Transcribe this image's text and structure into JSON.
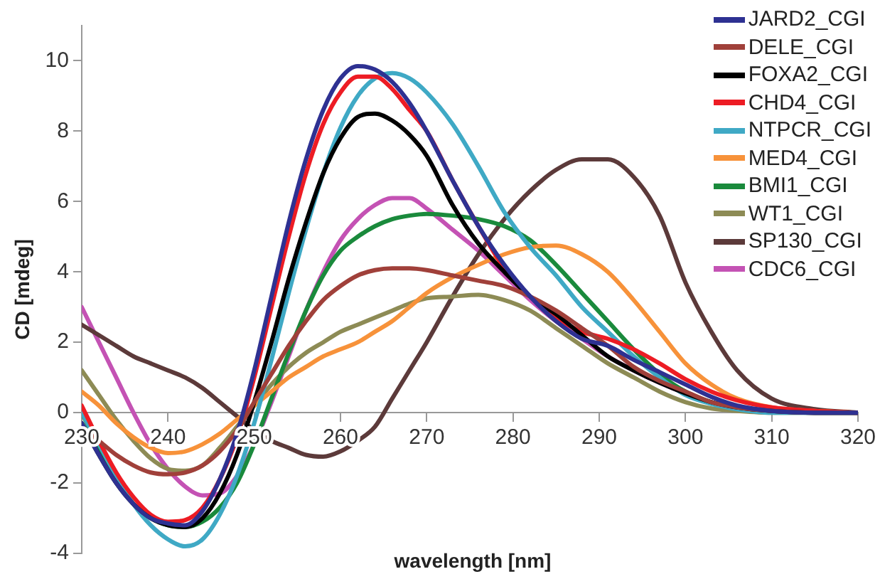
{
  "chart_data": {
    "type": "line",
    "xlabel": "wavelength [nm]",
    "ylabel": "CD [mdeg]",
    "xlim": [
      230,
      320
    ],
    "xticks": [
      230,
      240,
      250,
      260,
      270,
      280,
      290,
      300,
      310,
      320
    ],
    "ylim": [
      -4,
      11
    ],
    "yticks": [
      -4,
      -2,
      0,
      2,
      4,
      6,
      8,
      10
    ],
    "grid": false,
    "legend": "top right",
    "marker": "none",
    "line_style": "solid",
    "x": [
      230,
      232,
      234,
      236,
      238,
      240,
      242,
      244,
      246,
      248,
      250,
      252,
      254,
      256,
      258,
      260,
      262,
      264,
      266,
      268,
      270,
      273,
      276,
      279,
      282,
      285,
      288,
      291,
      294,
      297,
      300,
      303,
      306,
      310,
      315,
      320
    ],
    "series": [
      {
        "name": "JARD2_CGI",
        "color": "#2e3192",
        "values": [
          -0.3,
          -1.2,
          -2.0,
          -2.6,
          -3.0,
          -3.15,
          -3.2,
          -2.8,
          -1.9,
          -0.6,
          1.2,
          3.3,
          5.4,
          7.2,
          8.6,
          9.5,
          9.85,
          9.75,
          9.4,
          8.8,
          8.0,
          6.6,
          5.3,
          4.2,
          3.3,
          2.6,
          2.1,
          1.9,
          1.5,
          1.15,
          0.8,
          0.45,
          0.2,
          0.05,
          0,
          0
        ]
      },
      {
        "name": "DELE_CGI",
        "color": "#a0403a",
        "values": [
          -0.4,
          -0.8,
          -1.2,
          -1.5,
          -1.7,
          -1.75,
          -1.7,
          -1.5,
          -1.1,
          -0.5,
          0.3,
          1.1,
          1.9,
          2.6,
          3.2,
          3.6,
          3.9,
          4.05,
          4.1,
          4.1,
          4.05,
          3.9,
          3.75,
          3.6,
          3.3,
          2.9,
          2.4,
          1.9,
          1.3,
          0.9,
          0.6,
          0.3,
          0.15,
          0.05,
          0,
          0
        ]
      },
      {
        "name": "FOXA2_CGI",
        "color": "#000000",
        "values": [
          -0.3,
          -1.2,
          -2.0,
          -2.6,
          -3.0,
          -3.2,
          -3.25,
          -3.0,
          -2.3,
          -1.2,
          0.3,
          2.0,
          3.8,
          5.4,
          6.8,
          7.8,
          8.4,
          8.5,
          8.3,
          7.9,
          7.3,
          5.9,
          4.8,
          4.0,
          3.3,
          2.8,
          2.2,
          1.6,
          1.2,
          0.85,
          0.55,
          0.3,
          0.15,
          0.05,
          0,
          0
        ]
      },
      {
        "name": "CHD4_CGI",
        "color": "#ed1c24",
        "values": [
          0.2,
          -0.8,
          -1.7,
          -2.4,
          -2.9,
          -3.1,
          -3.05,
          -2.7,
          -1.9,
          -0.7,
          1.0,
          3.0,
          5.0,
          6.8,
          8.2,
          9.1,
          9.55,
          9.55,
          9.2,
          8.6,
          8.0,
          6.6,
          5.3,
          4.1,
          3.3,
          2.7,
          2.3,
          2.1,
          1.8,
          1.4,
          0.95,
          0.6,
          0.35,
          0.15,
          0.05,
          0
        ]
      },
      {
        "name": "NTPCR_CGI",
        "color": "#3fa9c5",
        "values": [
          0.0,
          -0.9,
          -1.8,
          -2.6,
          -3.2,
          -3.6,
          -3.8,
          -3.6,
          -2.9,
          -1.8,
          -0.3,
          1.5,
          3.4,
          5.2,
          6.8,
          8.1,
          9.0,
          9.5,
          9.65,
          9.5,
          9.1,
          8.2,
          7.0,
          5.7,
          4.7,
          3.9,
          3.0,
          2.3,
          1.6,
          1.0,
          0.5,
          0.25,
          0.1,
          0,
          0,
          0
        ]
      },
      {
        "name": "MED4_CGI",
        "color": "#f7923a",
        "values": [
          0.6,
          0.2,
          -0.3,
          -0.7,
          -1.0,
          -1.15,
          -1.1,
          -0.9,
          -0.6,
          -0.2,
          0.2,
          0.6,
          1.0,
          1.3,
          1.6,
          1.8,
          2.0,
          2.3,
          2.6,
          3.0,
          3.4,
          3.85,
          4.2,
          4.5,
          4.7,
          4.75,
          4.5,
          4.0,
          3.2,
          2.3,
          1.4,
          0.8,
          0.4,
          0.15,
          0.05,
          0
        ]
      },
      {
        "name": "BMI1_CGI",
        "color": "#1a8a3c",
        "values": [
          0.0,
          -1.0,
          -1.9,
          -2.6,
          -3.0,
          -3.2,
          -3.25,
          -3.1,
          -2.7,
          -2.0,
          -0.9,
          0.4,
          1.7,
          2.9,
          3.9,
          4.6,
          5.0,
          5.3,
          5.5,
          5.6,
          5.65,
          5.6,
          5.5,
          5.3,
          4.9,
          4.2,
          3.4,
          2.6,
          1.8,
          1.1,
          0.6,
          0.3,
          0.15,
          0.05,
          0,
          0
        ]
      },
      {
        "name": "WT1_CGI",
        "color": "#8d8b55",
        "values": [
          1.2,
          0.5,
          -0.2,
          -0.8,
          -1.3,
          -1.6,
          -1.65,
          -1.5,
          -1.0,
          -0.4,
          0.2,
          0.8,
          1.3,
          1.7,
          2.0,
          2.3,
          2.5,
          2.7,
          2.9,
          3.1,
          3.25,
          3.3,
          3.35,
          3.2,
          2.9,
          2.4,
          1.9,
          1.4,
          1.0,
          0.6,
          0.3,
          0.12,
          0.05,
          0,
          0,
          0
        ]
      },
      {
        "name": "SP130_CGI",
        "color": "#5c3a3a",
        "values": [
          2.5,
          2.2,
          1.9,
          1.6,
          1.4,
          1.2,
          1.0,
          0.7,
          0.3,
          -0.1,
          -0.5,
          -0.8,
          -1.0,
          -1.2,
          -1.25,
          -1.1,
          -0.8,
          -0.4,
          0.4,
          1.2,
          2.0,
          3.3,
          4.5,
          5.5,
          6.3,
          6.9,
          7.2,
          7.2,
          6.7,
          5.6,
          3.7,
          2.3,
          1.2,
          0.4,
          0.1,
          0
        ]
      },
      {
        "name": "CDC6_CGI",
        "color": "#c452b4",
        "values": [
          3.0,
          2.0,
          1.0,
          0.0,
          -0.9,
          -1.6,
          -2.1,
          -2.35,
          -2.3,
          -1.8,
          -0.9,
          0.3,
          1.6,
          2.9,
          4.0,
          4.9,
          5.5,
          5.9,
          6.1,
          6.1,
          5.8,
          5.2,
          4.6,
          3.9,
          3.2,
          2.6,
          2.1,
          1.6,
          1.2,
          0.85,
          0.55,
          0.3,
          0.15,
          0.05,
          0,
          0
        ]
      }
    ]
  }
}
